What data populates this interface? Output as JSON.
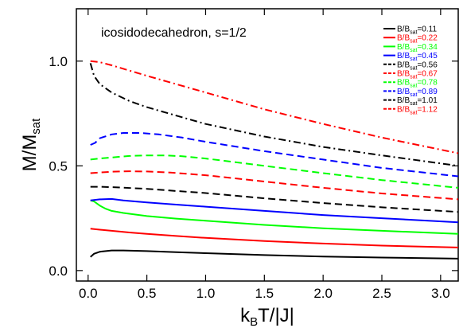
{
  "chart_data": {
    "type": "line",
    "annotation": "icosidodecahedron, s=1/2",
    "xlabel": {
      "main": "k",
      "sub": "B",
      "rest": "T/|J|"
    },
    "ylabel": {
      "main": "M/M",
      "sub": "sat"
    },
    "xlim": [
      -0.1,
      3.15
    ],
    "ylim": [
      -0.05,
      1.25
    ],
    "xticks": [
      0.0,
      0.5,
      1.0,
      1.5,
      2.0,
      2.5,
      3.0
    ],
    "xtick_labels": [
      "0.0",
      "0.5",
      "1.0",
      "1.5",
      "2.0",
      "2.5",
      "3.0"
    ],
    "yticks": [
      0.0,
      0.5,
      1.0
    ],
    "ytick_labels": [
      "0.0",
      "0.5",
      "1.0"
    ],
    "legend_position": "top-right",
    "series": [
      {
        "label": {
          "main": "B/B",
          "sub": "sat",
          "value": "=0.11"
        },
        "color": "#000000",
        "dash": "solid",
        "x": [
          0.02,
          0.05,
          0.1,
          0.2,
          0.3,
          0.5,
          0.75,
          1.0,
          1.5,
          2.0,
          2.5,
          3.15
        ],
        "y": [
          0.065,
          0.08,
          0.09,
          0.096,
          0.096,
          0.093,
          0.088,
          0.083,
          0.074,
          0.067,
          0.062,
          0.057
        ]
      },
      {
        "label": {
          "main": "B/B",
          "sub": "sat",
          "value": "=0.22"
        },
        "color": "#ff0000",
        "dash": "solid",
        "x": [
          0.02,
          0.1,
          0.2,
          0.35,
          0.5,
          0.75,
          1.0,
          1.5,
          2.0,
          2.5,
          3.15
        ],
        "y": [
          0.2,
          0.195,
          0.19,
          0.182,
          0.175,
          0.165,
          0.156,
          0.141,
          0.129,
          0.119,
          0.11
        ]
      },
      {
        "label": {
          "main": "B/B",
          "sub": "sat",
          "value": "=0.34"
        },
        "color": "#00ff00",
        "dash": "solid",
        "x": [
          0.02,
          0.05,
          0.1,
          0.15,
          0.2,
          0.3,
          0.5,
          0.75,
          1.0,
          1.5,
          2.0,
          2.5,
          3.15
        ],
        "y": [
          0.335,
          0.33,
          0.31,
          0.295,
          0.285,
          0.275,
          0.26,
          0.248,
          0.238,
          0.218,
          0.202,
          0.19,
          0.175
        ]
      },
      {
        "label": {
          "main": "B/B",
          "sub": "sat",
          "value": "=0.45"
        },
        "color": "#0000ff",
        "dash": "solid",
        "x": [
          0.02,
          0.1,
          0.2,
          0.3,
          0.5,
          0.75,
          1.0,
          1.5,
          2.0,
          2.5,
          3.15
        ],
        "y": [
          0.335,
          0.34,
          0.342,
          0.335,
          0.325,
          0.315,
          0.305,
          0.285,
          0.265,
          0.25,
          0.23
        ]
      },
      {
        "label": {
          "main": "B/B",
          "sub": "sat",
          "value": "=0.56"
        },
        "color": "#000000",
        "dash": "dashed",
        "x": [
          0.02,
          0.1,
          0.2,
          0.3,
          0.5,
          0.75,
          1.0,
          1.5,
          2.0,
          2.5,
          3.15
        ],
        "y": [
          0.4,
          0.4,
          0.398,
          0.396,
          0.39,
          0.38,
          0.37,
          0.345,
          0.322,
          0.302,
          0.28
        ]
      },
      {
        "label": {
          "main": "B/B",
          "sub": "sat",
          "value": "=0.67"
        },
        "color": "#ff0000",
        "dash": "dashed",
        "x": [
          0.02,
          0.1,
          0.2,
          0.35,
          0.5,
          0.7,
          1.0,
          1.5,
          2.0,
          2.5,
          3.15
        ],
        "y": [
          0.465,
          0.468,
          0.472,
          0.474,
          0.473,
          0.468,
          0.455,
          0.425,
          0.395,
          0.368,
          0.34
        ]
      },
      {
        "label": {
          "main": "B/B",
          "sub": "sat",
          "value": "=0.78"
        },
        "color": "#00ff00",
        "dash": "dashed",
        "x": [
          0.02,
          0.1,
          0.2,
          0.35,
          0.5,
          0.65,
          0.8,
          1.0,
          1.5,
          2.0,
          2.5,
          3.15
        ],
        "y": [
          0.53,
          0.535,
          0.54,
          0.547,
          0.55,
          0.55,
          0.546,
          0.535,
          0.5,
          0.465,
          0.432,
          0.395
        ]
      },
      {
        "label": {
          "main": "B/B",
          "sub": "sat",
          "value": "=0.89"
        },
        "color": "#0000ff",
        "dash": "dashed",
        "x": [
          0.02,
          0.06,
          0.1,
          0.2,
          0.3,
          0.45,
          0.6,
          0.8,
          1.0,
          1.5,
          2.0,
          2.5,
          3.15
        ],
        "y": [
          0.6,
          0.61,
          0.632,
          0.65,
          0.657,
          0.657,
          0.65,
          0.635,
          0.615,
          0.57,
          0.53,
          0.49,
          0.45
        ]
      },
      {
        "label": {
          "main": "B/B",
          "sub": "sat",
          "value": "=1.01"
        },
        "color": "#000000",
        "dash": "dashdot",
        "x": [
          0.02,
          0.05,
          0.1,
          0.2,
          0.35,
          0.5,
          0.75,
          1.0,
          1.5,
          2.0,
          2.5,
          3.15
        ],
        "y": [
          0.99,
          0.93,
          0.89,
          0.85,
          0.81,
          0.78,
          0.74,
          0.7,
          0.64,
          0.59,
          0.55,
          0.5
        ]
      },
      {
        "label": {
          "main": "B/B",
          "sub": "sat",
          "value": "=1.12"
        },
        "color": "#ff0000",
        "dash": "dashdot",
        "x": [
          0.02,
          0.1,
          0.2,
          0.35,
          0.5,
          0.75,
          1.0,
          1.5,
          2.0,
          2.5,
          3.15
        ],
        "y": [
          1.0,
          0.995,
          0.98,
          0.955,
          0.93,
          0.89,
          0.85,
          0.77,
          0.7,
          0.635,
          0.56
        ]
      }
    ]
  }
}
